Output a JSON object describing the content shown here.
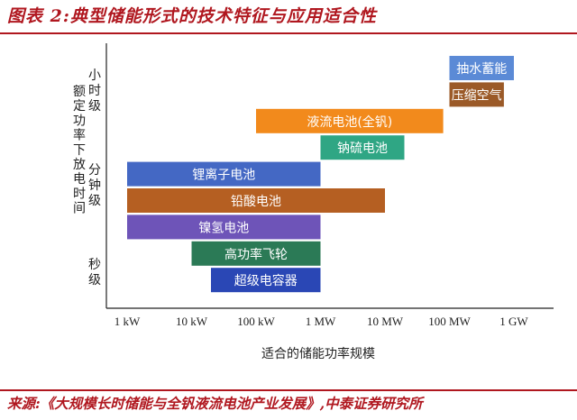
{
  "figure": {
    "title": "图表 2:典型储能形式的技术特征与应用适合性",
    "source": "来源:《大规模长时储能与全钒液流电池产业发展》,中泰证券研究所"
  },
  "chart_data": {
    "type": "bar",
    "orientation": "horizontal-range",
    "xlabel": "适合的储能功率规模",
    "ylabel": "额定功率下放电时间",
    "x_scale": "log",
    "x_ticks": [
      "1 kW",
      "10 kW",
      "100 kW",
      "1 MW",
      "10 MW",
      "100 MW",
      "1 GW"
    ],
    "y_groups": [
      {
        "label": "小时级",
        "chars": [
          "小",
          "时",
          "级"
        ]
      },
      {
        "label": "分钟级",
        "chars": [
          "分",
          "钟",
          "级"
        ]
      },
      {
        "label": "秒级",
        "chars": [
          "秒",
          "级"
        ]
      }
    ],
    "grid": false,
    "legend": "none",
    "bars": [
      {
        "label": "抽水蓄能",
        "from": "100 MW",
        "to": "1 GW",
        "color": "#5b8ad6"
      },
      {
        "label": "压缩空气",
        "from": "100 MW",
        "to": "700 MW",
        "color": "#9b5a28"
      },
      {
        "label": "液流电池(全钒)",
        "from": "100 kW",
        "to": "80 MW",
        "color": "#f28a1c"
      },
      {
        "label": "钠硫电池",
        "from": "1 MW",
        "to": "20 MW",
        "color": "#2fa684"
      },
      {
        "label": "锂离子电池",
        "from": "1 kW",
        "to": "1 MW",
        "color": "#4468c4"
      },
      {
        "label": "铅酸电池",
        "from": "1 kW",
        "to": "10 MW",
        "color": "#b55f22"
      },
      {
        "label": "镍氢电池",
        "from": "1 kW",
        "to": "1 MW",
        "color": "#6e54b8"
      },
      {
        "label": "高功率飞轮",
        "from": "10 kW",
        "to": "1 MW",
        "color": "#2b7a56"
      },
      {
        "label": "超级电容器",
        "from": "20 kW",
        "to": "1 MW",
        "color": "#2a47b5"
      }
    ]
  }
}
